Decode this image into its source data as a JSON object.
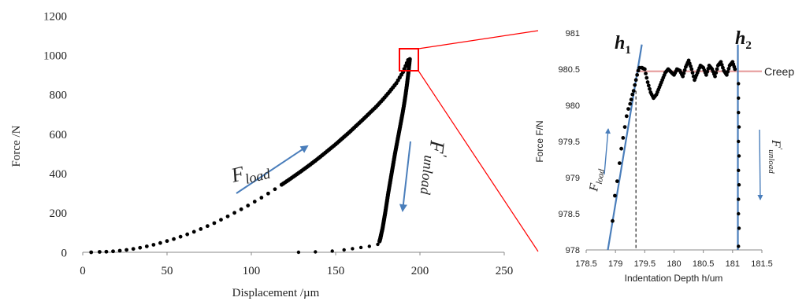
{
  "chart_data": [
    {
      "type": "scatter",
      "xlabel": "Displacement /µm",
      "ylabel": "Force /N",
      "xlim": [
        0,
        250
      ],
      "ylim": [
        0,
        1200
      ],
      "xticks": [
        0,
        50,
        100,
        150,
        200,
        250
      ],
      "yticks": [
        0,
        200,
        400,
        600,
        800,
        1000,
        1200
      ],
      "grid": false,
      "marker_color": "#000000",
      "annotation_color": "#4a7ebb",
      "zoom_box_color": "#ff0000",
      "annotations": {
        "load": {
          "base": "F",
          "sub": "load"
        },
        "unload": {
          "base": "F",
          "prime": "′",
          "sub": "unload"
        }
      },
      "loading": {
        "x": [
          5,
          10,
          14,
          18,
          22,
          26,
          30,
          34,
          38,
          42,
          46,
          50,
          54,
          58,
          62,
          66,
          70,
          74,
          78,
          82,
          86,
          90,
          94,
          98,
          102,
          106,
          110,
          114,
          118,
          122,
          126,
          130,
          134,
          138,
          142,
          146,
          150,
          154,
          158,
          162,
          166,
          170,
          174,
          178,
          182,
          186,
          190,
          193
        ],
        "y": [
          0,
          2,
          3,
          5,
          8,
          12,
          17,
          23,
          30,
          38,
          47,
          57,
          67,
          79,
          91,
          104,
          118,
          133,
          148,
          165,
          182,
          200,
          218,
          237,
          257,
          277,
          298,
          320,
          343,
          366,
          390,
          414,
          439,
          465,
          492,
          520,
          548,
          578,
          608,
          640,
          672,
          705,
          738,
          775,
          815,
          858,
          915,
          975
        ]
      },
      "unloading": {
        "x": [
          194,
          193.5,
          193,
          192.3,
          191.5,
          190.6,
          189.6,
          188.5,
          187.4,
          186.3,
          185.2,
          184.2,
          183.2,
          182.2,
          181.2,
          180.3,
          179.4,
          178.6,
          177.8,
          177,
          176.5,
          176
        ],
        "y": [
          980,
          940,
          900,
          850,
          800,
          750,
          700,
          650,
          600,
          550,
          500,
          450,
          400,
          350,
          300,
          250,
          200,
          160,
          120,
          90,
          70,
          55
        ]
      },
      "tail": {
        "x": [
          175,
          170,
          165,
          160,
          155,
          148,
          138,
          128
        ],
        "y": [
          40,
          30,
          24,
          18,
          12,
          6,
          2,
          0
        ]
      }
    },
    {
      "type": "scatter",
      "xlabel": "Indentation Depth h/um",
      "ylabel": "Force F/N",
      "xlim": [
        178.5,
        181.5
      ],
      "ylim": [
        978,
        981
      ],
      "xticks": [
        178.5,
        179,
        179.5,
        180,
        180.5,
        181,
        181.5
      ],
      "yticks": [
        978,
        978.5,
        979,
        979.5,
        980,
        980.5,
        981
      ],
      "grid": false,
      "creep_label": "Creep",
      "creep_level": 980.47,
      "creep_color": "#e8a0a0",
      "fit_line_color": "#4a7ebb",
      "h1": {
        "base": "h",
        "sub": "1",
        "line": [
          [
            178.87,
            978
          ],
          [
            179.45,
            980.84
          ]
        ],
        "dash_x": 179.35
      },
      "h2": {
        "base": "h",
        "sub": "2",
        "line": [
          [
            181.09,
            978
          ],
          [
            181.09,
            980.84
          ]
        ]
      },
      "annotations": {
        "load": {
          "base": "F",
          "sub": "load"
        },
        "unload": {
          "base": "F",
          "prime": "′",
          "sub": "unload"
        }
      },
      "loading": {
        "x": [
          178.95,
          178.99,
          179.03,
          179.07,
          179.1,
          179.13,
          179.16,
          179.19,
          179.22,
          179.25,
          179.27,
          179.29,
          179.31,
          179.33,
          179.35,
          179.37,
          179.39,
          179.41
        ],
        "y": [
          978.4,
          978.75,
          978.95,
          979.2,
          979.4,
          979.55,
          979.7,
          979.85,
          979.95,
          980.02,
          980.08,
          980.15,
          980.2,
          980.28,
          980.35,
          980.42,
          980.48,
          980.52
        ],
        "_note": ""
      },
      "creep": {
        "x": [
          179.45,
          179.5,
          179.55,
          179.6,
          179.65,
          179.7,
          179.75,
          179.8,
          179.85,
          179.9,
          179.95,
          180.0,
          180.05,
          180.1,
          180.15,
          180.2,
          180.25,
          180.3,
          180.35,
          180.4,
          180.45,
          180.5,
          180.55,
          180.6,
          180.65,
          180.7,
          180.75,
          180.8,
          180.85,
          180.9,
          180.95,
          181.0,
          181.04
        ],
        "y": [
          980.52,
          980.5,
          980.32,
          980.18,
          980.1,
          980.15,
          980.25,
          980.35,
          980.45,
          980.5,
          980.46,
          980.42,
          980.5,
          980.48,
          980.4,
          980.53,
          980.62,
          980.5,
          980.35,
          980.45,
          980.55,
          980.52,
          980.42,
          980.55,
          980.5,
          980.4,
          980.55,
          980.6,
          980.48,
          980.42,
          980.55,
          980.6,
          980.5
        ]
      },
      "unloading": {
        "x": [
          181.1,
          181.1,
          181.1,
          181.11,
          181.1,
          181.11,
          181.1,
          181.11,
          181.1,
          181.1,
          181.11,
          181.1
        ],
        "y": [
          980.3,
          980.1,
          979.9,
          979.7,
          979.5,
          979.3,
          979.1,
          978.9,
          978.7,
          978.5,
          978.3,
          978.05
        ]
      }
    }
  ]
}
